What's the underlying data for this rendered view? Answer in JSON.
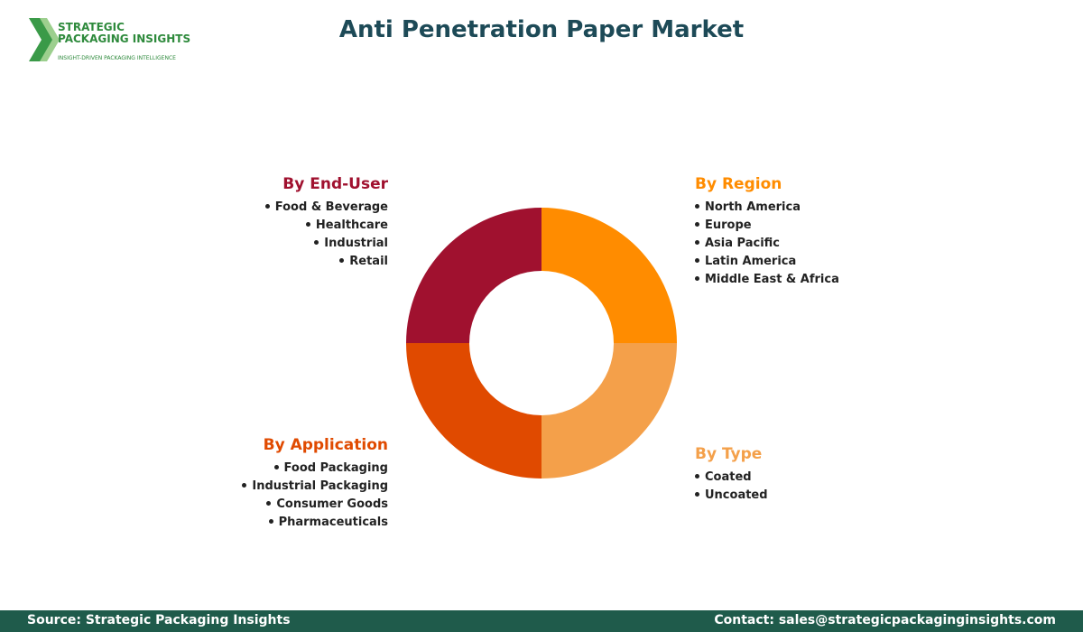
{
  "logo": {
    "line1": "STRATEGIC",
    "line2": "PACKAGING INSIGHTS",
    "tagline": "INSIGHT-DRIVEN PACKAGING INTELLIGENCE"
  },
  "title": "Anti Penetration Paper Market",
  "segments": [
    {
      "heading": "By End-User",
      "color": "#a0112f",
      "items": [
        "Food & Beverage",
        "Healthcare",
        "Industrial",
        "Retail"
      ]
    },
    {
      "heading": "By Region",
      "color": "#ff8c00",
      "items": [
        "North America",
        "Europe",
        "Asia Pacific",
        "Latin America",
        "Middle East & Africa"
      ]
    },
    {
      "heading": "By Application",
      "color": "#e04a00",
      "items": [
        "Food Packaging",
        "Industrial Packaging",
        "Consumer Goods",
        "Pharmaceuticals"
      ]
    },
    {
      "heading": "By Type",
      "color": "#f4a04a",
      "items": [
        "Coated",
        "Uncoated"
      ]
    }
  ],
  "footer": {
    "source": "Source: Strategic Packaging Insights",
    "contact": "Contact: sales@strategicpackaginginsights.com"
  }
}
